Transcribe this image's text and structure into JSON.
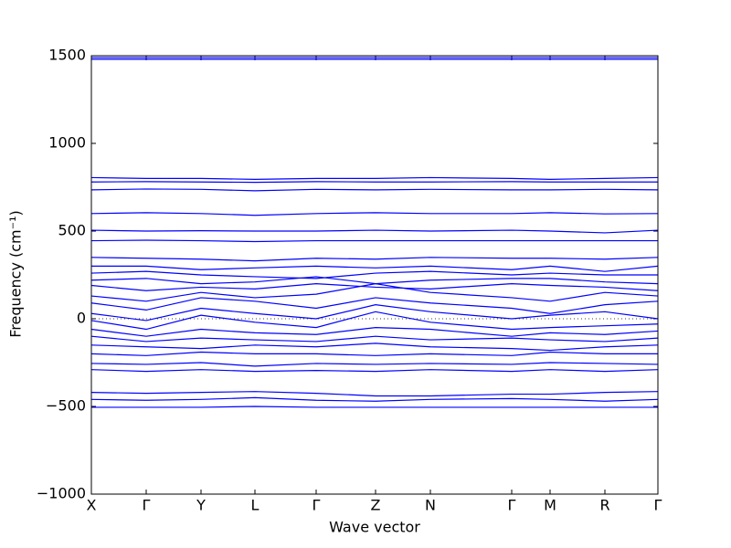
{
  "chart_data": {
    "type": "line",
    "xlabel": "Wave vector",
    "ylabel": "Frequency (cm⁻¹)",
    "color": "#0000ff",
    "x": [
      0,
      60,
      120,
      179,
      246,
      311,
      371,
      460,
      502,
      562,
      620
    ],
    "xlim": [
      0,
      620
    ],
    "xticks": [
      {
        "value": 0,
        "label": "X"
      },
      {
        "value": 60,
        "label": "Γ"
      },
      {
        "value": 120,
        "label": "Y"
      },
      {
        "value": 179,
        "label": "L"
      },
      {
        "value": 246,
        "label": "Γ"
      },
      {
        "value": 311,
        "label": "Z"
      },
      {
        "value": 371,
        "label": "N"
      },
      {
        "value": 460,
        "label": "Γ"
      },
      {
        "value": 502,
        "label": "M"
      },
      {
        "value": 562,
        "label": "R"
      },
      {
        "value": 620,
        "label": "Γ"
      }
    ],
    "ylim": [
      -1000,
      1500
    ],
    "yticks": [
      {
        "value": -1000,
        "label": "−1000"
      },
      {
        "value": -500,
        "label": "−500"
      },
      0,
      500,
      1000,
      1500
    ],
    "series": [
      {
        "values": [
          1490,
          1490,
          1490,
          1490,
          1490,
          1490,
          1490,
          1490,
          1490,
          1490,
          1490
        ]
      },
      {
        "values": [
          1480,
          1480,
          1480,
          1480,
          1480,
          1480,
          1480,
          1480,
          1480,
          1480,
          1480
        ]
      },
      {
        "values": [
          805,
          800,
          800,
          795,
          800,
          800,
          805,
          800,
          795,
          800,
          805
        ]
      },
      {
        "values": [
          780,
          782,
          780,
          778,
          782,
          780,
          780,
          782,
          780,
          780,
          780
        ]
      },
      {
        "values": [
          735,
          740,
          738,
          730,
          738,
          735,
          738,
          735,
          735,
          738,
          735
        ]
      },
      {
        "values": [
          600,
          605,
          600,
          590,
          600,
          605,
          600,
          600,
          605,
          598,
          600
        ]
      },
      {
        "values": [
          505,
          500,
          502,
          500,
          500,
          505,
          500,
          505,
          500,
          490,
          505
        ]
      },
      {
        "values": [
          445,
          448,
          445,
          440,
          445,
          445,
          445,
          445,
          445,
          445,
          445
        ]
      },
      {
        "values": [
          350,
          345,
          340,
          330,
          345,
          340,
          350,
          345,
          345,
          340,
          350
        ]
      },
      {
        "values": [
          300,
          300,
          280,
          290,
          300,
          290,
          300,
          280,
          300,
          270,
          300
        ]
      },
      {
        "values": [
          260,
          270,
          250,
          240,
          230,
          260,
          270,
          250,
          260,
          250,
          250
        ]
      },
      {
        "values": [
          220,
          230,
          200,
          210,
          240,
          200,
          220,
          230,
          230,
          210,
          200
        ]
      },
      {
        "values": [
          190,
          160,
          180,
          170,
          200,
          180,
          170,
          200,
          190,
          180,
          160
        ]
      },
      {
        "values": [
          130,
          100,
          150,
          120,
          140,
          200,
          150,
          120,
          100,
          150,
          130
        ]
      },
      {
        "values": [
          90,
          50,
          120,
          100,
          60,
          120,
          90,
          60,
          30,
          80,
          100
        ]
      },
      {
        "values": [
          30,
          -10,
          60,
          30,
          0,
          80,
          40,
          0,
          20,
          40,
          0
        ]
      },
      {
        "values": [
          -10,
          -60,
          20,
          -20,
          -50,
          40,
          -20,
          -60,
          -50,
          -40,
          -30
        ]
      },
      {
        "values": [
          -60,
          -100,
          -60,
          -80,
          -90,
          -50,
          -60,
          -100,
          -80,
          -90,
          -70
        ]
      },
      {
        "values": [
          -100,
          -130,
          -110,
          -120,
          -130,
          -100,
          -120,
          -110,
          -120,
          -130,
          -110
        ]
      },
      {
        "values": [
          -150,
          -160,
          -170,
          -150,
          -160,
          -140,
          -160,
          -170,
          -180,
          -160,
          -150
        ]
      },
      {
        "values": [
          -200,
          -210,
          -190,
          -200,
          -200,
          -210,
          -200,
          -210,
          -190,
          -200,
          -200
        ]
      },
      {
        "values": [
          -255,
          -260,
          -250,
          -270,
          -255,
          -260,
          -255,
          -260,
          -250,
          -255,
          -260
        ]
      },
      {
        "values": [
          -290,
          -300,
          -290,
          -300,
          -295,
          -300,
          -290,
          -300,
          -290,
          -300,
          -290
        ]
      },
      {
        "values": [
          -420,
          -425,
          -420,
          -415,
          -425,
          -440,
          -440,
          -430,
          -430,
          -420,
          -415
        ]
      },
      {
        "values": [
          -460,
          -465,
          -460,
          -450,
          -465,
          -470,
          -460,
          -455,
          -460,
          -470,
          -460
        ]
      },
      {
        "values": [
          -505,
          -505,
          -505,
          -500,
          -505,
          -505,
          -505,
          -505,
          -505,
          -505,
          -505
        ]
      }
    ]
  }
}
